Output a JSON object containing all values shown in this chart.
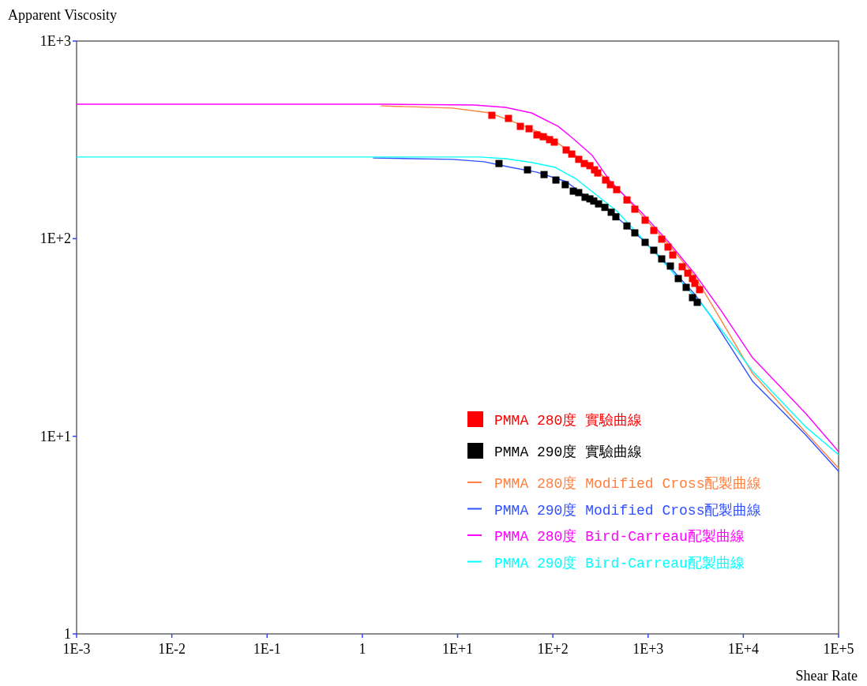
{
  "chart_data": {
    "type": "scatter",
    "xlabel": "Shear Rate",
    "ylabel": "Apparent Viscosity",
    "log": "xy",
    "grid": false,
    "legend": "bottom right",
    "xlim": [
      0.001,
      100000
    ],
    "ylim": [
      1,
      1000
    ],
    "xticks": [
      {
        "value": 0.001,
        "label": "1E-3"
      },
      {
        "value": 0.01,
        "label": "1E-2"
      },
      {
        "value": 0.1,
        "label": "1E-1"
      },
      1,
      {
        "value": 10,
        "label": "1E+1"
      },
      {
        "value": 100,
        "label": "1E+2"
      },
      {
        "value": 1000,
        "label": "1E+3"
      },
      {
        "value": 10000,
        "label": "1E+4"
      },
      {
        "value": 100000,
        "label": "1E+5"
      }
    ],
    "yticks": [
      1,
      {
        "value": 10,
        "label": "1E+1"
      },
      {
        "value": 100,
        "label": "1E+2"
      },
      {
        "value": 1000,
        "label": "1E+3"
      }
    ],
    "series": [
      {
        "name": "PMMA 280度 實驗曲線",
        "marker": "square",
        "color": "#ff0000",
        "x": [
          22.9,
          34.2,
          45.6,
          56.3,
          68.1,
          79.3,
          92.4,
          103.6,
          138,
          158,
          187,
          214,
          245,
          274,
          296,
          358,
          402,
          468,
          600,
          726,
          931,
          1148,
          1390,
          1619,
          1816,
          2283,
          2610,
          2926,
          3098,
          3474
        ],
        "values": [
          421,
          406,
          370,
          360,
          335,
          328,
          317,
          308,
          281,
          268,
          252,
          240,
          234,
          223,
          215,
          198,
          187.5,
          177,
          157,
          141,
          124,
          110,
          99.4,
          90.7,
          82.7,
          72.1,
          66.9,
          62.8,
          59.4,
          55.2
        ]
      },
      {
        "name": "PMMA 290度 實驗曲線",
        "marker": "square",
        "color": "#000000",
        "x": [
          27.2,
          54.2,
          80.9,
          107.7,
          135,
          164,
          187,
          218,
          245,
          269,
          302,
          352,
          410,
          459,
          600,
          726,
          931,
          1148,
          1390,
          1715,
          2076,
          2512,
          2926,
          3281
        ],
        "values": [
          240,
          223,
          211,
          198,
          187.5,
          174,
          171,
          162,
          159,
          155,
          150,
          144,
          136,
          129,
          116,
          107,
          95.8,
          87.4,
          79.0,
          72.7,
          62.8,
          56.7,
          50.3,
          47.6
        ]
      },
      {
        "name": "PMMA 280度 Modified Cross配製曲線",
        "type": "line",
        "color": "#ff8040",
        "x": [
          1.585,
          8.83,
          21.7,
          43.9,
          87.3,
          155,
          296,
          468,
          863,
          1651,
          3098,
          5495,
          12490,
          44850,
          100000
        ],
        "values": [
          470,
          458,
          433,
          381,
          332,
          273,
          219,
          182,
          131,
          93.2,
          64.5,
          40.7,
          20.8,
          10.5,
          6.9
        ]
      },
      {
        "name": "PMMA 290度 Modified Cross配製曲線",
        "type": "line",
        "color": "#3050ff",
        "x": [
          1.31,
          8.83,
          19.0,
          36.3,
          68.1,
          138,
          214,
          358,
          863,
          1651,
          3098,
          4539,
          12490,
          44850,
          100000
        ],
        "values": [
          256,
          252,
          245,
          229.5,
          217,
          194.5,
          166,
          144,
          99.4,
          72.7,
          52.2,
          40.7,
          19.0,
          10.2,
          6.65
        ]
      },
      {
        "name": "PMMA 280度 Bird-Carreau配製曲線",
        "type": "line",
        "color": "#ff00ff",
        "x": [
          0.001,
          1.585,
          14.8,
          31.7,
          59.6,
          114,
          155,
          259,
          402,
          863,
          1651,
          3098,
          5819,
          12490,
          44850,
          100000
        ],
        "values": [
          479,
          479,
          475,
          462,
          433,
          370,
          328,
          264,
          194.5,
          135,
          95.8,
          66.3,
          43.4,
          25.0,
          13.1,
          8.37
        ]
      },
      {
        "name": "PMMA 290度 Bird-Carreau配製曲線",
        "type": "line",
        "color": "#00ffff",
        "x": [
          0.001,
          16.9,
          31.7,
          59.6,
          106,
          177,
          259,
          468,
          863,
          3750,
          12490,
          44850,
          100000
        ],
        "values": [
          259,
          259,
          254,
          243,
          229.5,
          200,
          173,
          138,
          100.3,
          45.9,
          21.4,
          11.2,
          8.07
        ]
      }
    ]
  }
}
